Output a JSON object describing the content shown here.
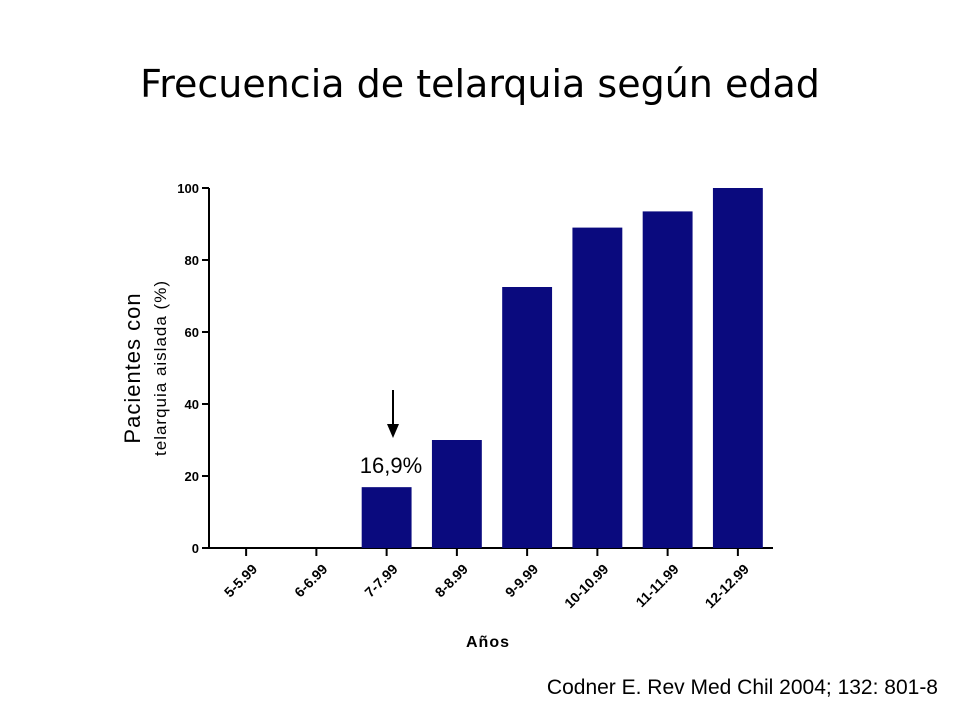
{
  "slide": {
    "title": "Frecuencia de telarquia según edad",
    "citation": "Codner E. Rev Med Chil 2004; 132: 801-8"
  },
  "chart_data": {
    "type": "bar",
    "categories": [
      "5-5.99",
      "6-6.99",
      "7-7.99",
      "8-8.99",
      "9-9.99",
      "10-10.99",
      "11-11.99",
      "12-12.99"
    ],
    "values": [
      0,
      0,
      16.9,
      30,
      72.5,
      89,
      93.5,
      100
    ],
    "xlabel": "Años",
    "ylabel_line1": "Pacientes con",
    "ylabel_line2": "telarquia aislada (%)",
    "ylim": [
      0,
      100
    ],
    "yticks": [
      "0",
      "20",
      "40",
      "60",
      "80",
      "100"
    ],
    "annotation": {
      "text": "16,9%",
      "category": "7-7.99"
    },
    "bar_color": "#0a0a7e",
    "grid": false
  }
}
